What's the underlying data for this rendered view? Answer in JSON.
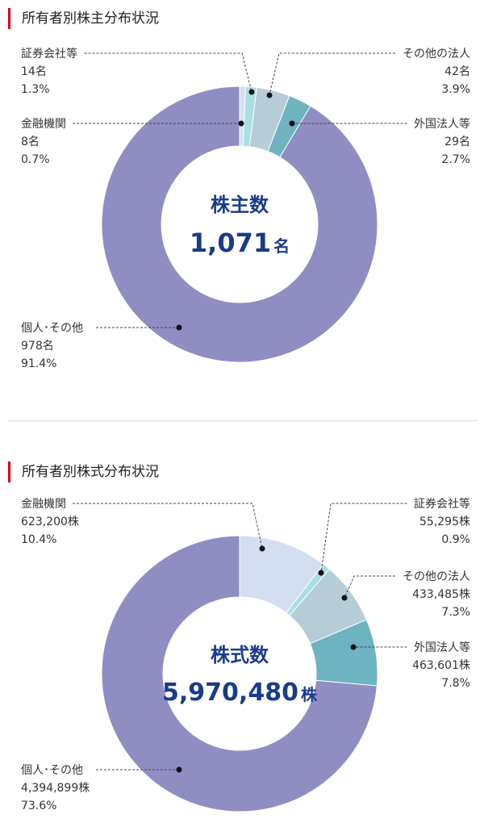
{
  "colors": {
    "accent": "#d7000f",
    "navy": "#1a3b8a",
    "personal": "#8f8dc2",
    "foreign": "#6db3c0",
    "other_corp": "#b6cdd8",
    "securities": "#a8dfe0",
    "financial": "#d3dff0"
  },
  "chart_data": [
    {
      "type": "pie",
      "title": "所有者別株主分布状況",
      "center_label": "株主数",
      "center_value": "1,071",
      "center_unit": "名",
      "slices": [
        {
          "label": "金融機関",
          "count": "8名",
          "percent": "0.7%",
          "value": 0.7,
          "color": "#d3dff0"
        },
        {
          "label": "証券会社等",
          "count": "14名",
          "percent": "1.3%",
          "value": 1.3,
          "color": "#a8dfe0"
        },
        {
          "label": "その他の法人",
          "count": "42名",
          "percent": "3.9%",
          "value": 3.9,
          "color": "#b6cdd8"
        },
        {
          "label": "外国法人等",
          "count": "29名",
          "percent": "2.7%",
          "value": 2.7,
          "color": "#6db3c0"
        },
        {
          "label": "個人･その他",
          "count": "978名",
          "percent": "91.4%",
          "value": 91.4,
          "color": "#8f8dc2"
        }
      ]
    },
    {
      "type": "pie",
      "title": "所有者別株式分布状況",
      "center_label": "株式数",
      "center_value": "5,970,480",
      "center_unit": "株",
      "slices": [
        {
          "label": "金融機関",
          "count": "623,200株",
          "percent": "10.4%",
          "value": 10.4,
          "color": "#d3dff0"
        },
        {
          "label": "証券会社等",
          "count": "55,295株",
          "percent": "0.9%",
          "value": 0.9,
          "color": "#a8dfe0"
        },
        {
          "label": "その他の法人",
          "count": "433,485株",
          "percent": "7.3%",
          "value": 7.3,
          "color": "#b6cdd8"
        },
        {
          "label": "外国法人等",
          "count": "463,601株",
          "percent": "7.8%",
          "value": 7.8,
          "color": "#6db3c0"
        },
        {
          "label": "個人･その他",
          "count": "4,394,899株",
          "percent": "73.6%",
          "value": 73.6,
          "color": "#8f8dc2"
        }
      ]
    }
  ]
}
